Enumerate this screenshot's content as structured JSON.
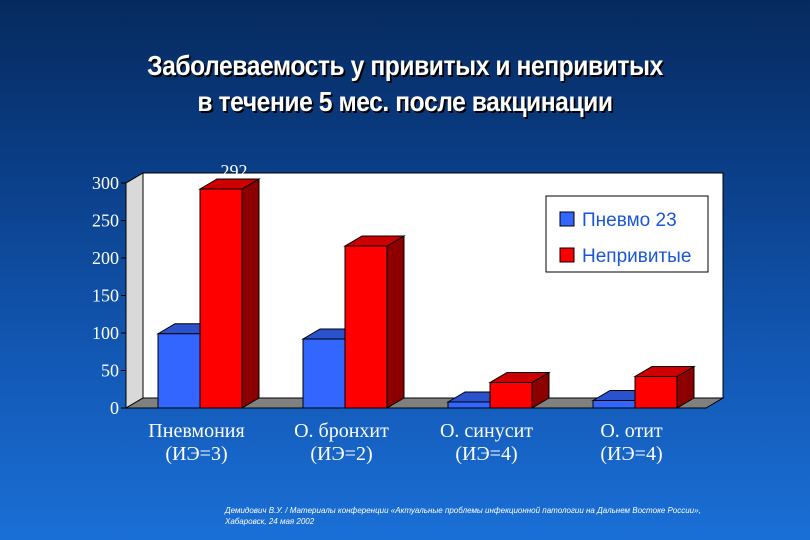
{
  "slide": {
    "title_line1": "Заболеваемость у привитых и непривитых",
    "title_line2": "в течение 5 мес. после вакцинации",
    "source_line1": "Демидович В.У. / Материалы конференции «Актуальные проблемы инфекционной патологии на Дальнем Востоке России»,",
    "source_line2": "Хабаровск, 24 мая 2002"
  },
  "colors": {
    "vaccinated": "#3366ff",
    "unvaccinated": "#ff0000",
    "plot_bg": "#ffffff",
    "text": "#ffffff"
  },
  "chart_data": {
    "type": "bar",
    "title": "",
    "xlabel": "",
    "ylabel": "",
    "ylim": [
      0,
      300
    ],
    "yticks": [
      0,
      50,
      100,
      150,
      200,
      250,
      300
    ],
    "grid": false,
    "legend_position": "top-right",
    "categories": [
      {
        "line1": "Пневмония",
        "line2": "(ИЭ=3)"
      },
      {
        "line1": "О. бронхит",
        "line2": "(ИЭ=2)"
      },
      {
        "line1": "О. синусит",
        "line2": "(ИЭ=4)"
      },
      {
        "line1": "О. отит",
        "line2": "(ИЭ=4)"
      }
    ],
    "series": [
      {
        "name": "Пневмо 23",
        "values": [
          99,
          92,
          8,
          10
        ]
      },
      {
        "name": "Непривитые",
        "values": [
          292,
          216,
          34,
          42
        ]
      }
    ]
  }
}
